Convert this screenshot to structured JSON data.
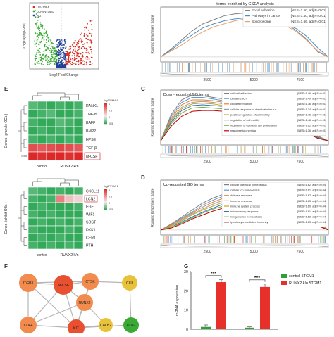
{
  "volcano": {
    "ylabel": "-Log10(adj P-val)",
    "xlabel": "Log2 Fold Change",
    "legend": [
      "UP=1084",
      "DOWN=1633",
      "NOT"
    ],
    "colors": {
      "up": "#d73027",
      "down": "#3aaa35",
      "not": "#1f3f99"
    }
  },
  "gsea_top": {
    "title": "terms enriched by GSEA analysis",
    "ylabel": "Running Enrichment Score",
    "series": [
      {
        "name": "Focal adhesion",
        "nes": "[NES=1.50, adj.P=0.02]",
        "color": "#7f7f7f",
        "values": [
          0.0,
          0.08,
          0.17,
          0.26,
          0.33,
          0.37,
          0.41,
          0.43,
          0.44,
          0.43,
          0.41,
          0.38,
          0.33,
          0.26,
          0.17,
          0.05,
          0.0
        ]
      },
      {
        "name": "Pathways in cancer",
        "nes": "[NES=1.40, adj.P=0.01]",
        "color": "#4a90c8",
        "values": [
          0.0,
          0.07,
          0.15,
          0.22,
          0.29,
          0.33,
          0.36,
          0.38,
          0.39,
          0.39,
          0.38,
          0.36,
          0.33,
          0.28,
          0.2,
          0.09,
          0.0
        ]
      },
      {
        "name": "Spliceosome",
        "nes": "[NES=1.66, adj.P=0.01]",
        "color": "#e8a06a",
        "values": [
          0.0,
          0.06,
          0.12,
          0.19,
          0.25,
          0.3,
          0.33,
          0.36,
          0.38,
          0.38,
          0.37,
          0.35,
          0.31,
          0.25,
          0.16,
          0.06,
          0.0
        ]
      }
    ],
    "xticks": [
      "2500",
      "5000",
      "7500"
    ]
  },
  "panel_e_top": {
    "letter": "E",
    "ylabel": "Genes (granule OCs )",
    "genes": [
      "RANKL",
      "TNF-α",
      "BAFF",
      "BMP2",
      "HPSE",
      "TGF-β",
      "M-CSF"
    ],
    "columns": [
      "control",
      "RUNX2 k/n"
    ],
    "values": [
      [
        -0.4,
        -0.45,
        -0.5,
        -0.45,
        -0.5,
        -0.45
      ],
      [
        -0.5,
        -0.45,
        -0.4,
        -0.55,
        -0.5,
        -0.45
      ],
      [
        -0.45,
        -0.55,
        -0.5,
        -0.4,
        -0.45,
        -0.5
      ],
      [
        -0.5,
        -0.45,
        -0.5,
        -0.45,
        -0.5,
        -0.55
      ],
      [
        -0.45,
        -0.5,
        -0.45,
        -0.5,
        -0.45,
        -0.5
      ],
      [
        0.8,
        0.75,
        0.8,
        0.85,
        0.8,
        0.75
      ],
      [
        1.0,
        0.95,
        1.0,
        1.0,
        0.95,
        1.0
      ]
    ],
    "colorbar_label": "log2FPKM+1",
    "colorbar_ticks": [
      "1",
      "0.5",
      "0",
      "-0.5"
    ]
  },
  "panel_e_bottom": {
    "ylabel": "Genes (inhibit OBs )",
    "genes": [
      "CXCL11",
      "LCN2",
      "EGF",
      "WIF1",
      "SOST",
      "DKK1",
      "CER1",
      "PTH"
    ],
    "columns": [
      "control",
      "RUNX2 k/n"
    ],
    "values": [
      [
        -0.4,
        -0.45,
        -0.5,
        -0.45,
        -0.5,
        -0.45
      ],
      [
        -0.45,
        -0.5,
        -0.45,
        0.55,
        0.25,
        0.15
      ],
      [
        -0.5,
        -0.45,
        -0.5,
        -0.55,
        -0.5,
        -0.45
      ],
      [
        -0.45,
        -0.5,
        -0.45,
        -0.5,
        -0.55,
        -0.5
      ],
      [
        -0.5,
        -0.45,
        -0.5,
        -0.45,
        -0.5,
        -0.45
      ],
      [
        -0.45,
        -0.5,
        -0.55,
        -0.5,
        -0.45,
        -0.5
      ],
      [
        -0.5,
        -0.45,
        -0.5,
        -0.45,
        -0.5,
        -0.55
      ],
      [
        -0.45,
        -0.5,
        -0.45,
        -0.5,
        -0.45,
        -0.5
      ]
    ],
    "colorbar_label": "log2FPKM+1",
    "colorbar_ticks": [
      "1",
      "0.5",
      "0",
      "-0.5"
    ]
  },
  "panel_c": {
    "letter": "C",
    "title": "Down-regulated GO terms",
    "ylabel": "Running Enrichment Score",
    "xticks": [
      "2500",
      "5000",
      "7500"
    ],
    "series": [
      {
        "name": "cell-cell adhesion",
        "nes": "[NES=1.46, adj.P=0.01]",
        "color": "#7f7f7f",
        "values": [
          0.0,
          0.32,
          0.5,
          0.56,
          0.55,
          0.53,
          0.51,
          0.49,
          0.46,
          0.43,
          0.39,
          0.35,
          0.3,
          0.23,
          0.15,
          0.06,
          0.0
        ]
      },
      {
        "name": "cell adhesion",
        "nes": "[NES=1.40, adj.P=0.01]",
        "color": "#5b9bd5",
        "values": [
          0.0,
          0.3,
          0.47,
          0.53,
          0.53,
          0.51,
          0.49,
          0.47,
          0.45,
          0.42,
          0.38,
          0.34,
          0.29,
          0.22,
          0.14,
          0.05,
          0.0
        ]
      },
      {
        "name": "cell differentiation",
        "nes": "[NES=1.36, adj.P=0.01]",
        "color": "#ed7d31",
        "values": [
          0.0,
          0.28,
          0.44,
          0.5,
          0.5,
          0.49,
          0.47,
          0.45,
          0.43,
          0.4,
          0.36,
          0.32,
          0.27,
          0.21,
          0.13,
          0.05,
          0.0
        ]
      },
      {
        "name": "cellular response to chemical stimulus",
        "nes": "[NES=1.34, adj.P=0.01]",
        "color": "#9e9e9e",
        "values": [
          0.0,
          0.26,
          0.41,
          0.47,
          0.48,
          0.47,
          0.45,
          0.43,
          0.41,
          0.38,
          0.35,
          0.31,
          0.26,
          0.2,
          0.12,
          0.04,
          0.0
        ]
      },
      {
        "name": "positive regulation of cell motility",
        "nes": "[NES=1.76, adj.P=0.01]",
        "color": "#c9a227",
        "values": [
          0.0,
          0.25,
          0.39,
          0.45,
          0.46,
          0.45,
          0.43,
          0.42,
          0.4,
          0.37,
          0.34,
          0.3,
          0.25,
          0.19,
          0.12,
          0.04,
          0.0
        ]
      },
      {
        "name": "regulation of cell motility",
        "nes": "[NES=1.48, adj.P=0.01]",
        "color": "#2e75b6",
        "values": [
          0.0,
          0.23,
          0.37,
          0.43,
          0.44,
          0.43,
          0.42,
          0.4,
          0.38,
          0.36,
          0.33,
          0.29,
          0.24,
          0.18,
          0.11,
          0.04,
          0.0
        ]
      },
      {
        "name": "regulation of epithelial cell proliferation",
        "nes": "[NES=1.62, adj.P=0.01]",
        "color": "#70ad47",
        "values": [
          0.0,
          0.21,
          0.34,
          0.4,
          0.41,
          0.4,
          0.39,
          0.38,
          0.36,
          0.34,
          0.31,
          0.27,
          0.22,
          0.17,
          0.1,
          0.03,
          0.0
        ]
      },
      {
        "name": "response to chemical",
        "nes": "[NES=1.36, adj.P=0.01]",
        "color": "#c00000",
        "values": [
          0.0,
          0.18,
          0.3,
          0.36,
          0.37,
          0.37,
          0.36,
          0.35,
          0.33,
          0.31,
          0.28,
          0.25,
          0.2,
          0.15,
          0.09,
          0.03,
          0.0
        ]
      }
    ]
  },
  "panel_d": {
    "letter": "D",
    "title": "Up-regulated GO terms",
    "ylabel": "Running Enrichment Score",
    "xticks": [
      "2500",
      "5000",
      "7500"
    ],
    "series": [
      {
        "name": "cellular chemical homeostasis",
        "nes": "[NES=1.62, adj.P=0.04]",
        "color": "#7f7f7f",
        "values": [
          0.0,
          0.06,
          0.13,
          0.2,
          0.27,
          0.32,
          0.36,
          0.39,
          0.41,
          0.42,
          0.42,
          0.4,
          0.36,
          0.3,
          0.2,
          0.08,
          0.0
        ]
      },
      {
        "name": "cellular ion homeostasis",
        "nes": "[NES=1.61, adj.P=0.04]",
        "color": "#5b9bd5",
        "values": [
          0.0,
          0.05,
          0.12,
          0.18,
          0.25,
          0.3,
          0.34,
          0.37,
          0.39,
          0.4,
          0.4,
          0.38,
          0.34,
          0.28,
          0.19,
          0.07,
          0.0
        ]
      },
      {
        "name": "defense response",
        "nes": "[NES=1.62, adj.P=0.04]",
        "color": "#ed7d31",
        "values": [
          0.0,
          0.05,
          0.11,
          0.17,
          0.23,
          0.28,
          0.32,
          0.35,
          0.37,
          0.38,
          0.38,
          0.36,
          0.33,
          0.27,
          0.18,
          0.07,
          0.0
        ]
      },
      {
        "name": "immune response",
        "nes": "[NES=1.63, adj.P=0.04]",
        "color": "#9e9e9e",
        "values": [
          0.0,
          0.04,
          0.1,
          0.16,
          0.21,
          0.26,
          0.3,
          0.33,
          0.35,
          0.36,
          0.36,
          0.35,
          0.32,
          0.26,
          0.17,
          0.06,
          0.0
        ]
      },
      {
        "name": "immune system process",
        "nes": "[NES=1.60, adj.P=0.04]",
        "color": "#c9a227",
        "values": [
          0.0,
          0.04,
          0.09,
          0.15,
          0.2,
          0.24,
          0.28,
          0.31,
          0.33,
          0.34,
          0.34,
          0.33,
          0.3,
          0.25,
          0.16,
          0.06,
          0.0
        ]
      },
      {
        "name": "inflammatory response",
        "nes": "[NES=1.61, adj.P=0.04]",
        "color": "#2e75b6",
        "values": [
          0.0,
          0.03,
          0.08,
          0.13,
          0.18,
          0.22,
          0.26,
          0.29,
          0.31,
          0.32,
          0.32,
          0.31,
          0.28,
          0.23,
          0.15,
          0.05,
          0.0
        ]
      },
      {
        "name": "inorganic ion homeostasis",
        "nes": "[NES=1.62, adj.P=0.04]",
        "color": "#70ad47",
        "values": [
          0.0,
          0.03,
          0.07,
          0.12,
          0.17,
          0.21,
          0.24,
          0.27,
          0.29,
          0.3,
          0.3,
          0.29,
          0.26,
          0.21,
          0.14,
          0.05,
          0.0
        ]
      },
      {
        "name": "lymphocyte mediated immunity",
        "nes": "[NES=1.63, adj.P=0.04]",
        "color": "#c00000",
        "values": [
          0.0,
          0.02,
          0.06,
          0.11,
          0.15,
          0.19,
          0.22,
          0.25,
          0.27,
          0.28,
          0.28,
          0.27,
          0.24,
          0.2,
          0.13,
          0.04,
          0.0
        ]
      }
    ]
  },
  "panel_f": {
    "letter": "F",
    "nodes": [
      {
        "id": "ITGB3",
        "color": "#f28c4e"
      },
      {
        "id": "M-CSF",
        "color": "#e85030"
      },
      {
        "id": "CTSK",
        "color": "#f28c4e"
      },
      {
        "id": "CLU",
        "color": "#e8c23a"
      },
      {
        "id": "RUNX2",
        "color": "#f28c4e"
      },
      {
        "id": "CD44",
        "color": "#f28c4e"
      },
      {
        "id": "KIT",
        "color": "#e85030"
      },
      {
        "id": "CALB2",
        "color": "#e8c23a"
      },
      {
        "id": "LCN2",
        "color": "#3aaa35"
      }
    ],
    "edges": [
      [
        "ITGB3",
        "M-CSF"
      ],
      [
        "ITGB3",
        "CTSK"
      ],
      [
        "ITGB3",
        "CD44"
      ],
      [
        "ITGB3",
        "KIT"
      ],
      [
        "M-CSF",
        "CTSK"
      ],
      [
        "M-CSF",
        "RUNX2"
      ],
      [
        "M-CSF",
        "CD44"
      ],
      [
        "M-CSF",
        "KIT"
      ],
      [
        "CTSK",
        "RUNX2"
      ],
      [
        "CTSK",
        "KIT"
      ],
      [
        "CTSK",
        "CLU"
      ],
      [
        "RUNX2",
        "KIT"
      ],
      [
        "RUNX2",
        "CALB2"
      ],
      [
        "CD44",
        "KIT"
      ],
      [
        "KIT",
        "CALB2"
      ],
      [
        "CLU",
        "LCN2"
      ],
      [
        "KIT",
        "LCN2"
      ],
      [
        "CD44",
        "RUNX2"
      ]
    ]
  },
  "chart_data": {
    "type": "bar",
    "letter": "G",
    "ylabel": "mRNA expression",
    "categories": [
      "",
      ""
    ],
    "series": [
      {
        "name": "control 5TGM1",
        "color": "#2e9e3a",
        "values": [
          1.2,
          0.8
        ],
        "errors": [
          1.0,
          0.4
        ]
      },
      {
        "name": "RUNX2 k/n 5TGM1",
        "color": "#e8302a",
        "values": [
          24.5,
          22.0
        ],
        "errors": [
          1.2,
          1.5
        ]
      }
    ],
    "significance": [
      "***",
      "***"
    ],
    "yticks": [
      "0",
      "10",
      "20",
      "30"
    ],
    "ylim": [
      0,
      30
    ]
  }
}
